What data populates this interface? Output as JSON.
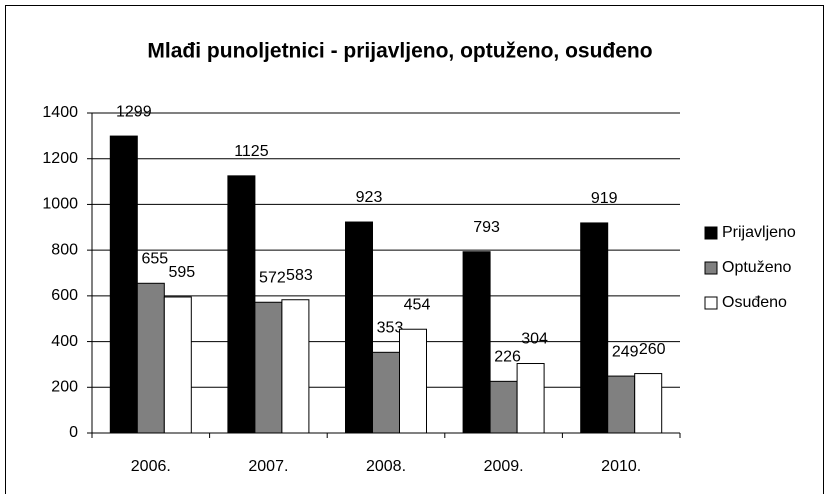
{
  "chart_data": {
    "type": "bar",
    "title": "Mlađi punoljetnici - prijavljeno, optuženo, osuđeno",
    "categories": [
      "2006.",
      "2007.",
      "2008.",
      "2009.",
      "2010."
    ],
    "series": [
      {
        "name": "Prijavljeno",
        "color": "#000000",
        "values": [
          1299,
          1125,
          923,
          793,
          919
        ]
      },
      {
        "name": "Optuženo",
        "color": "#808080",
        "values": [
          655,
          572,
          353,
          226,
          249
        ]
      },
      {
        "name": "Osuđeno",
        "color": "#ffffff",
        "values": [
          595,
          583,
          454,
          304,
          260
        ]
      }
    ],
    "ylim": [
      0,
      1400
    ],
    "yticks": [
      0,
      200,
      400,
      600,
      800,
      1000,
      1200,
      1400
    ],
    "grid": true,
    "legend": "right"
  }
}
